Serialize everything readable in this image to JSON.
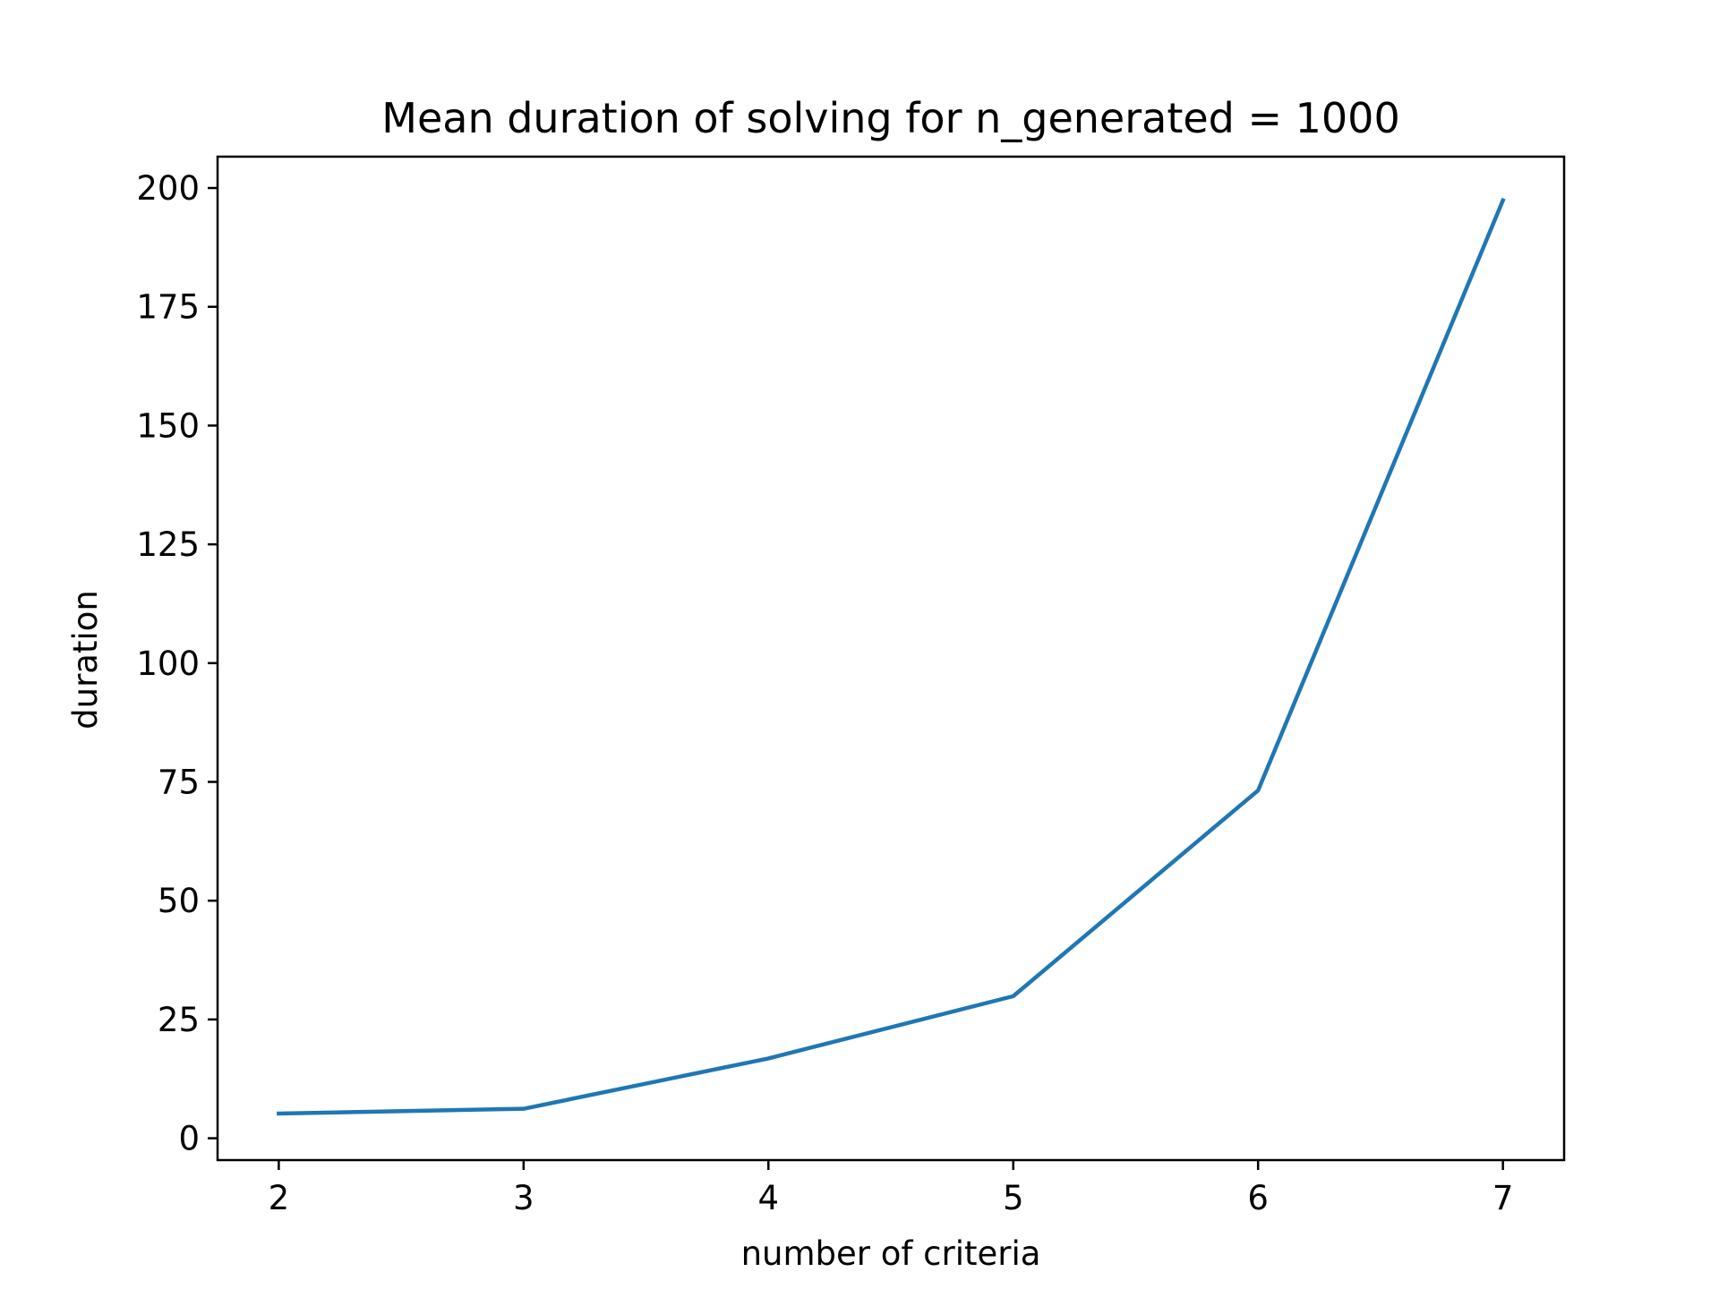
{
  "chart_data": {
    "type": "line",
    "title": "Mean duration of solving for n_generated = 1000",
    "xlabel": "number of criteria",
    "ylabel": "duration",
    "x": [
      2,
      3,
      4,
      5,
      6,
      7
    ],
    "series": [
      {
        "values": [
          5.2,
          6.2,
          16.8,
          29.9,
          73.2,
          197.4
        ],
        "color": "#1f77b4"
      }
    ],
    "xlim": [
      1.75,
      7.25
    ],
    "ylim": [
      -4.6,
      206.6
    ],
    "xticks": [
      2,
      3,
      4,
      5,
      6,
      7
    ],
    "yticks": [
      0,
      25,
      50,
      75,
      100,
      125,
      150,
      175,
      200
    ],
    "grid": false,
    "legend": "none"
  }
}
